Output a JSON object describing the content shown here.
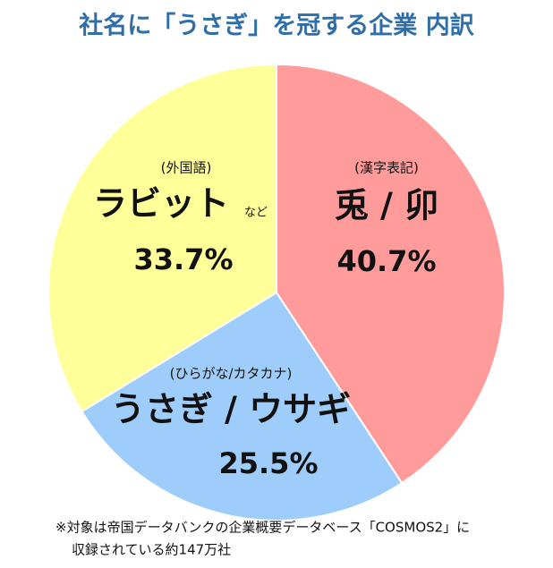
{
  "chart_data": {
    "type": "pie",
    "title": "社名に「うさぎ」を冠する企業 内訳",
    "categories": [
      "兎 / 卯",
      "うさぎ / ウサギ",
      "ラビット"
    ],
    "sublabels": [
      "(漢字表記)",
      "(ひらがな/カタカナ)",
      "(外国語)"
    ],
    "annotation": "など",
    "values": [
      40.7,
      25.5,
      33.7
    ],
    "value_labels": [
      "40.7%",
      "25.5%",
      "33.7%"
    ],
    "colors": [
      "#ff9b9b",
      "#9fcdfb",
      "#ffff9a"
    ],
    "footnote": [
      "※対象は帝国データバンクの企業概要データベース「COSMOS2」に",
      "収録されている約147万社"
    ]
  }
}
